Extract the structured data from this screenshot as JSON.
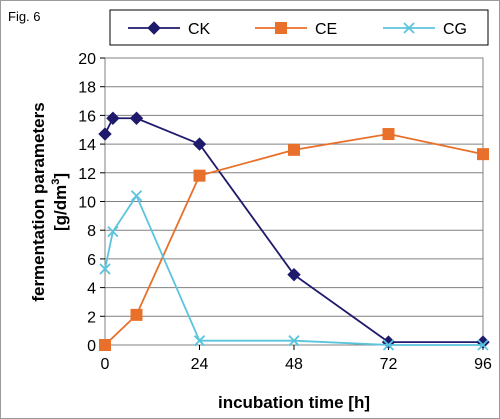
{
  "figure_label": "Fig. 6",
  "chart_data": {
    "type": "line",
    "xlabel": "incubation time [h]",
    "ylabel_line1": "fermentation parameters",
    "ylabel_line2_prefix": "[g/dm",
    "ylabel_line2_sup": "3",
    "ylabel_line2_suffix": "]",
    "xlim": [
      0,
      96
    ],
    "ylim": [
      0,
      20
    ],
    "xticks": [
      0,
      24,
      48,
      72,
      96
    ],
    "yticks": [
      0,
      2,
      4,
      6,
      8,
      10,
      12,
      14,
      16,
      18,
      20
    ],
    "grid": "horizontal",
    "legend_position": "top",
    "series": [
      {
        "name": "CK",
        "color": "#1f1a6b",
        "marker": "diamond",
        "x": [
          0,
          2,
          8,
          24,
          48,
          72,
          96
        ],
        "y": [
          14.7,
          15.8,
          15.8,
          14.0,
          4.9,
          0.2,
          0.2
        ]
      },
      {
        "name": "CE",
        "color": "#e8702a",
        "marker": "square",
        "x": [
          0,
          8,
          24,
          48,
          72,
          96
        ],
        "y": [
          0.0,
          2.1,
          11.8,
          13.6,
          14.7,
          13.3
        ]
      },
      {
        "name": "CG",
        "color": "#5bc4dd",
        "marker": "x",
        "x": [
          0,
          2,
          8,
          24,
          48,
          72,
          96
        ],
        "y": [
          5.3,
          7.9,
          10.4,
          0.3,
          0.3,
          0.0,
          0.0
        ]
      }
    ]
  }
}
